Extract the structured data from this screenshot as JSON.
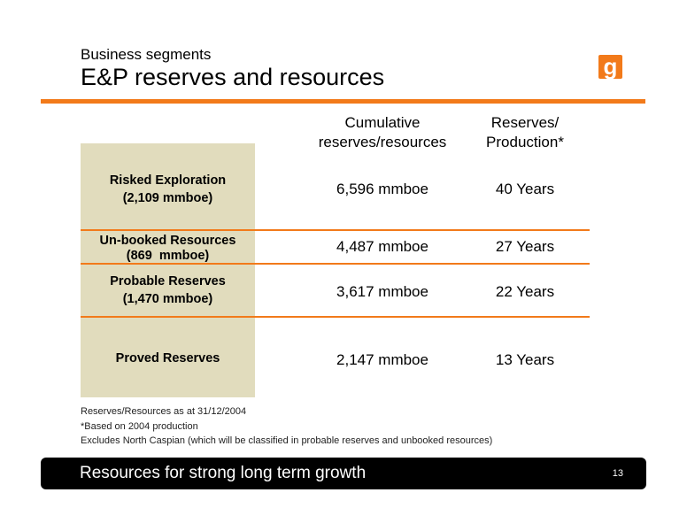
{
  "header": {
    "kicker": "Business segments",
    "title": "E&P reserves and resources",
    "logo_letter": "g",
    "accent_color": "#f27a1a"
  },
  "table": {
    "columns": [
      "Cumulative\nreserves/resources",
      "Reserves/\nProduction*"
    ],
    "col1_line1": "Cumulative",
    "col1_line2": "reserves/resources",
    "col2_line1": "Reserves/",
    "col2_line2": "Production*",
    "band_color": "#e1dcbd",
    "rows": [
      {
        "label_line1": "Risked Exploration",
        "label_line2": "(2,109 mmboe)",
        "cumulative": "6,596 mmboe",
        "rp": "40 Years"
      },
      {
        "label_line1": "Un-booked Resources",
        "label_line2": "(869  mmboe)",
        "cumulative": "4,487 mmboe",
        "rp": "27 Years"
      },
      {
        "label_line1": "Probable Reserves",
        "label_line2": "(1,470 mmboe)",
        "cumulative": "3,617 mmboe",
        "rp": "22 Years"
      },
      {
        "label_line1": "Proved Reserves",
        "label_line2": "",
        "cumulative": "2,147 mmboe",
        "rp": "13 Years"
      }
    ]
  },
  "notes": [
    "Reserves/Resources as at 31/12/2004",
    "*Based on 2004 production",
    "Excludes North Caspian (which will be classified in probable reserves and unbooked resources)"
  ],
  "footer": {
    "text": "Resources for strong long term growth",
    "page_number": "13"
  }
}
